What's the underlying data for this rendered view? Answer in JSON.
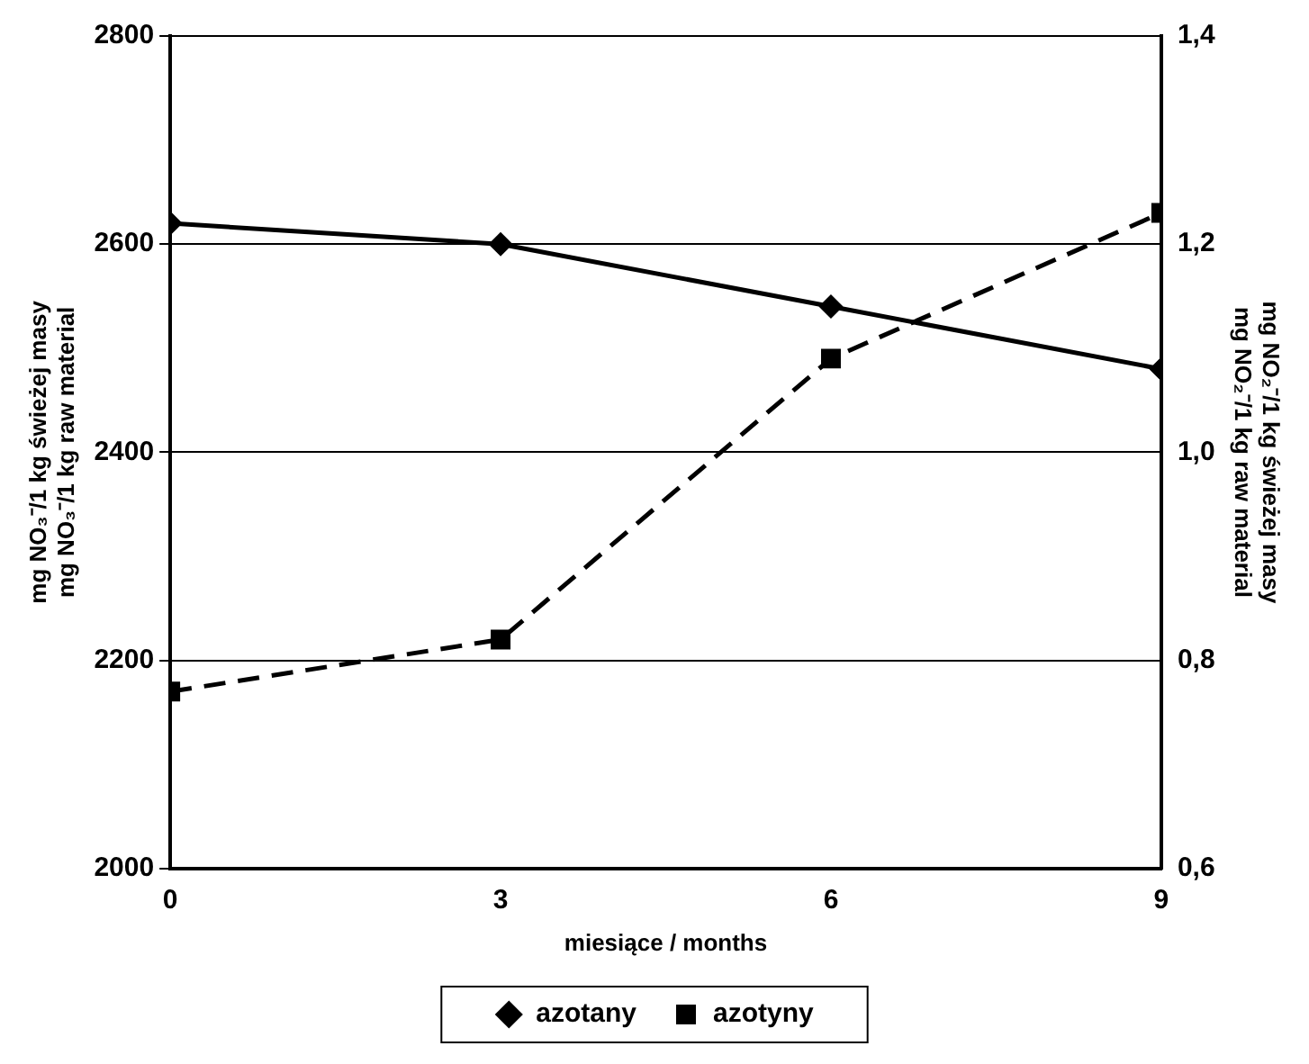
{
  "chart_data": {
    "type": "line",
    "xlabel": "miesiące / months",
    "ylabel": "mg NO₃⁻/1 kg świeżej masy\nmg NO₃⁻/1 kg raw material",
    "y2label": "mg NO₂⁻/1 kg świeżej masy\nmg NO₂⁻/1 kg raw material",
    "x": [
      0,
      3,
      6,
      9
    ],
    "xlim": [
      0,
      9
    ],
    "xticks": [
      0,
      3,
      6,
      9
    ],
    "ylim": [
      2000,
      2800
    ],
    "yticks": [
      2000,
      2200,
      2400,
      2600,
      2800
    ],
    "y2lim": [
      0.6,
      1.4
    ],
    "y2ticks": [
      {
        "value": 0.6,
        "label": "0,6"
      },
      {
        "value": 0.8,
        "label": "0,8"
      },
      {
        "value": 1.0,
        "label": "1,0"
      },
      {
        "value": 1.2,
        "label": "1,2"
      },
      {
        "value": 1.4,
        "label": "1,4"
      }
    ],
    "series": [
      {
        "name": "azotany",
        "color": "#000000",
        "values": [
          2620,
          2600,
          2540,
          2480
        ],
        "marker": "diamond",
        "line_style": "solid"
      },
      {
        "name": "azotyny",
        "color": "#000000",
        "values": [
          0.77,
          0.82,
          1.09,
          1.23
        ],
        "axis": "y2",
        "marker": "square",
        "line_style": "dashed"
      }
    ],
    "grid": "y",
    "legend": "bottom"
  }
}
